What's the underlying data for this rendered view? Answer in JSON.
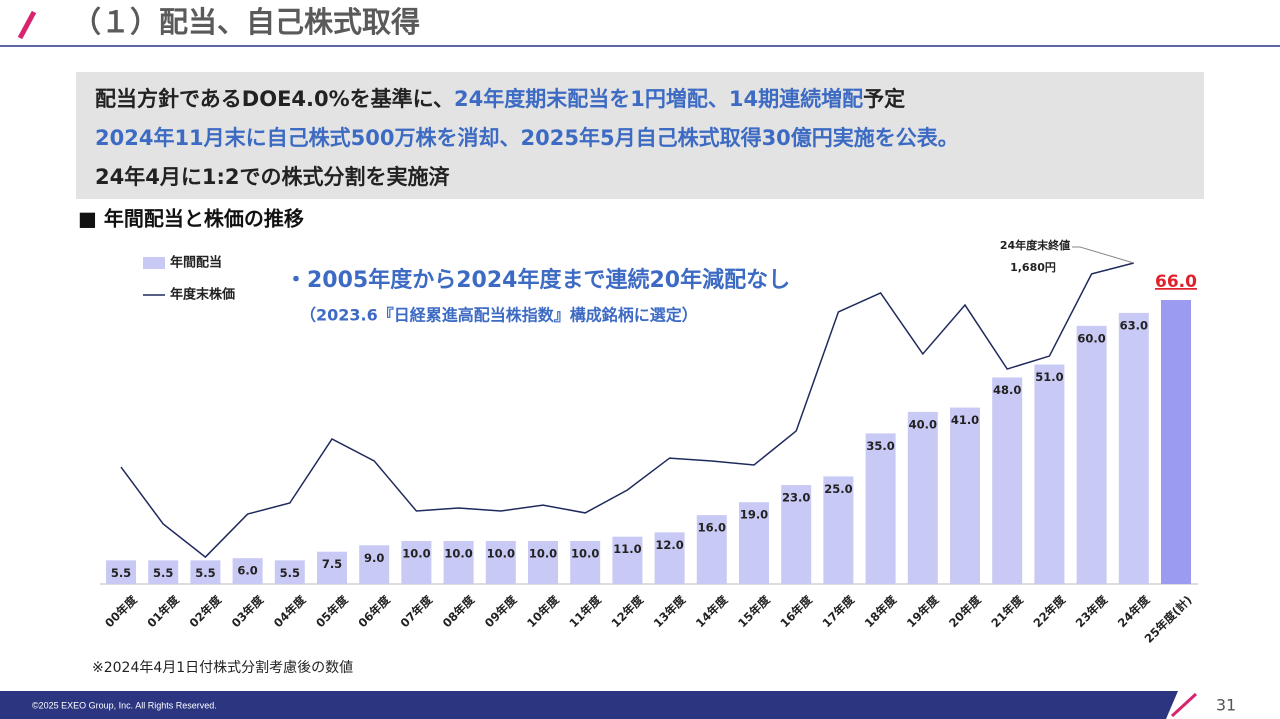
{
  "header": {
    "title": "（１）配当、自己株式取得"
  },
  "summary": [
    [
      {
        "text": "配当方針であるDOE4.0%を基準に、",
        "emphasis": false
      },
      {
        "text": "24年度期末配当を1円増配、14期連続増配",
        "emphasis": true
      },
      {
        "text": "予定",
        "emphasis": false
      }
    ],
    [
      {
        "text": "2024年11月末に自己株式500万株を消却、2025年5月自己株式取得30億円実施を公表。",
        "emphasis": true
      }
    ],
    [
      {
        "text": "24年4月に1:2での株式分割を実施済",
        "emphasis": false
      }
    ]
  ],
  "section_title": "■ 年間配当と株価の推移",
  "chart_data": {
    "type": "bar",
    "categories": [
      "00年度",
      "01年度",
      "02年度",
      "03年度",
      "04年度",
      "05年度",
      "06年度",
      "07年度",
      "08年度",
      "09年度",
      "10年度",
      "11年度",
      "12年度",
      "13年度",
      "14年度",
      "15年度",
      "16年度",
      "17年度",
      "18年度",
      "19年度",
      "20年度",
      "21年度",
      "22年度",
      "23年度",
      "24年度",
      "25年度(計)"
    ],
    "series": [
      {
        "name": "年間配当",
        "type": "bar",
        "color": "#c9c9f5",
        "highlight_color": "#9b9bf2",
        "values": [
          5.5,
          5.5,
          5.5,
          6,
          5.5,
          7.5,
          9,
          10,
          10,
          10,
          10,
          10,
          11,
          12,
          16,
          19,
          23,
          25,
          35,
          40,
          41,
          48,
          51,
          60,
          63,
          66
        ],
        "value_labels": [
          "5.5",
          "5.5",
          "5.5",
          "6.0",
          "5.5",
          "7.5",
          "9.0",
          "10.0",
          "10.0",
          "10.0",
          "10.0",
          "10.0",
          "11.0",
          "12.0",
          "16.0",
          "19.0",
          "23.0",
          "25.0",
          "35.0",
          "40.0",
          "41.0",
          "48.0",
          "51.0",
          "60.0",
          "63.0",
          "66.0"
        ]
      },
      {
        "name": "年度末株価",
        "type": "line",
        "axis": "y2",
        "color": "#1f2a5c",
        "values": [
          612,
          314,
          141,
          366,
          424,
          759,
          644,
          382,
          398,
          382,
          413,
          372,
          492,
          659,
          644,
          623,
          801,
          1424,
          1523,
          1204,
          1460,
          1125,
          1193,
          1623,
          1680,
          null
        ]
      }
    ],
    "annotations": [
      {
        "text": "・2005年度から2024年度まで連続20年減配なし"
      },
      {
        "text": "（2023.6『日経累進高配当株指数』構成銘柄に選定）"
      },
      {
        "text": "24年度末終値",
        "series": 1,
        "index": 24
      },
      {
        "text": "1,680円"
      }
    ],
    "legend": "top-left"
  },
  "footnote": "※2024年4月1日付株式分割考慮後の数値",
  "footer": {
    "copyright": "©2025 EXEO Group, Inc. All Rights Reserved.",
    "page": "31"
  }
}
